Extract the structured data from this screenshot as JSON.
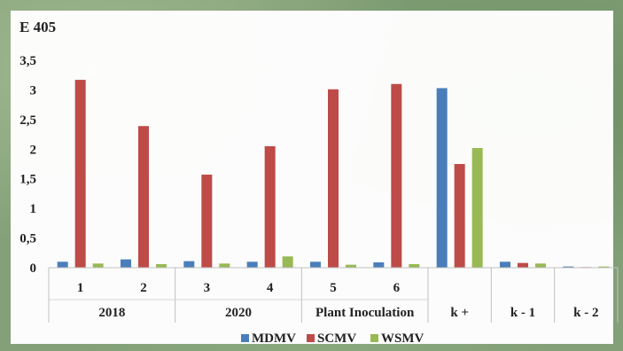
{
  "chart_data": {
    "type": "bar",
    "title": "E 405",
    "categories": [
      "1",
      "2",
      "3",
      "4",
      "5",
      "6",
      "",
      "",
      ""
    ],
    "groups": [
      {
        "label": "2018",
        "span": [
          0,
          1
        ]
      },
      {
        "label": "2020",
        "span": [
          2,
          3
        ]
      },
      {
        "label": "Plant Inoculation",
        "span": [
          4,
          5
        ]
      },
      {
        "label": "k +",
        "span": [
          6,
          6
        ]
      },
      {
        "label": "k - 1",
        "span": [
          7,
          7
        ]
      },
      {
        "label": "k - 2",
        "span": [
          8,
          8
        ]
      }
    ],
    "series": [
      {
        "name": "MDMV",
        "color": "#4a7ebb",
        "values": [
          0.1,
          0.14,
          0.11,
          0.1,
          0.1,
          0.09,
          3.03,
          0.1,
          0.02
        ]
      },
      {
        "name": "SCMV",
        "color": "#be4b48",
        "values": [
          3.17,
          2.39,
          1.57,
          2.05,
          3.01,
          3.1,
          1.75,
          0.08,
          0.01
        ]
      },
      {
        "name": "WSMV",
        "color": "#98b954",
        "values": [
          0.07,
          0.06,
          0.07,
          0.19,
          0.05,
          0.06,
          2.02,
          0.07,
          0.02
        ]
      }
    ],
    "y_ticks": [
      "0",
      "0,5",
      "1",
      "1,5",
      "2",
      "2,5",
      "3",
      "3,5"
    ],
    "ylim": [
      0,
      3.5
    ],
    "grid": false,
    "legend_position": "bottom"
  }
}
